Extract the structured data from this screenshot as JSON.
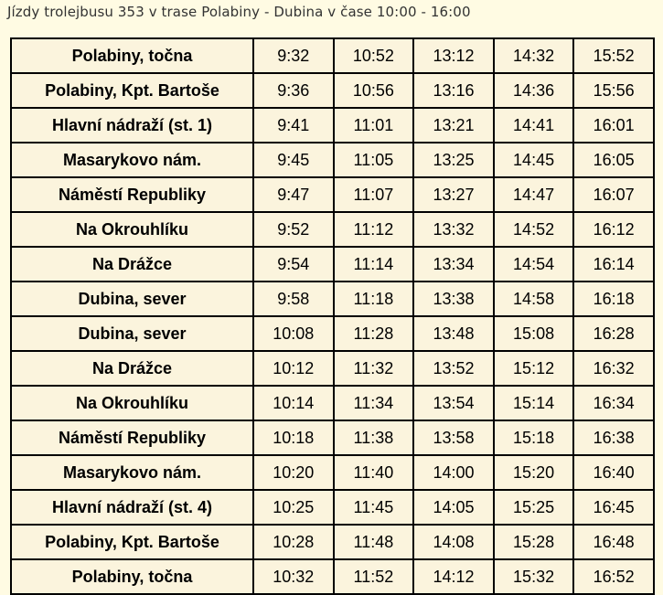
{
  "caption": "Jízdy trolejbusu 353 v trase Polabiny - Dubina v čase 10:00 - 16:00",
  "rows": [
    {
      "stop": "Polabiny, točna",
      "times": [
        "9:32",
        "10:52",
        "13:12",
        "14:32",
        "15:52"
      ]
    },
    {
      "stop": "Polabiny, Kpt. Bartoše",
      "times": [
        "9:36",
        "10:56",
        "13:16",
        "14:36",
        "15:56"
      ]
    },
    {
      "stop": "Hlavní nádraží (st. 1)",
      "times": [
        "9:41",
        "11:01",
        "13:21",
        "14:41",
        "16:01"
      ]
    },
    {
      "stop": "Masarykovo nám.",
      "times": [
        "9:45",
        "11:05",
        "13:25",
        "14:45",
        "16:05"
      ]
    },
    {
      "stop": "Náměstí Republiky",
      "times": [
        "9:47",
        "11:07",
        "13:27",
        "14:47",
        "16:07"
      ]
    },
    {
      "stop": "Na Okrouhlíku",
      "times": [
        "9:52",
        "11:12",
        "13:32",
        "14:52",
        "16:12"
      ]
    },
    {
      "stop": "Na Drážce",
      "times": [
        "9:54",
        "11:14",
        "13:34",
        "14:54",
        "16:14"
      ]
    },
    {
      "stop": "Dubina, sever",
      "times": [
        "9:58",
        "11:18",
        "13:38",
        "14:58",
        "16:18"
      ]
    },
    {
      "stop": "Dubina, sever",
      "times": [
        "10:08",
        "11:28",
        "13:48",
        "15:08",
        "16:28"
      ]
    },
    {
      "stop": "Na Drážce",
      "times": [
        "10:12",
        "11:32",
        "13:52",
        "15:12",
        "16:32"
      ]
    },
    {
      "stop": "Na Okrouhlíku",
      "times": [
        "10:14",
        "11:34",
        "13:54",
        "15:14",
        "16:34"
      ]
    },
    {
      "stop": "Náměstí Republiky",
      "times": [
        "10:18",
        "11:38",
        "13:58",
        "15:18",
        "16:38"
      ]
    },
    {
      "stop": "Masarykovo nám.",
      "times": [
        "10:20",
        "11:40",
        "14:00",
        "15:20",
        "16:40"
      ]
    },
    {
      "stop": "Hlavní nádraží (st. 4)",
      "times": [
        "10:25",
        "11:45",
        "14:05",
        "15:25",
        "16:45"
      ]
    },
    {
      "stop": "Polabiny, Kpt. Bartoše",
      "times": [
        "10:28",
        "11:48",
        "14:08",
        "15:28",
        "16:48"
      ]
    },
    {
      "stop": "Polabiny, točna",
      "times": [
        "10:32",
        "11:52",
        "14:12",
        "15:32",
        "16:52"
      ]
    }
  ],
  "colors": {
    "background": "#fffbe3",
    "table_background": "#fbf4dd",
    "border": "#000000",
    "caption_text": "#333333"
  }
}
